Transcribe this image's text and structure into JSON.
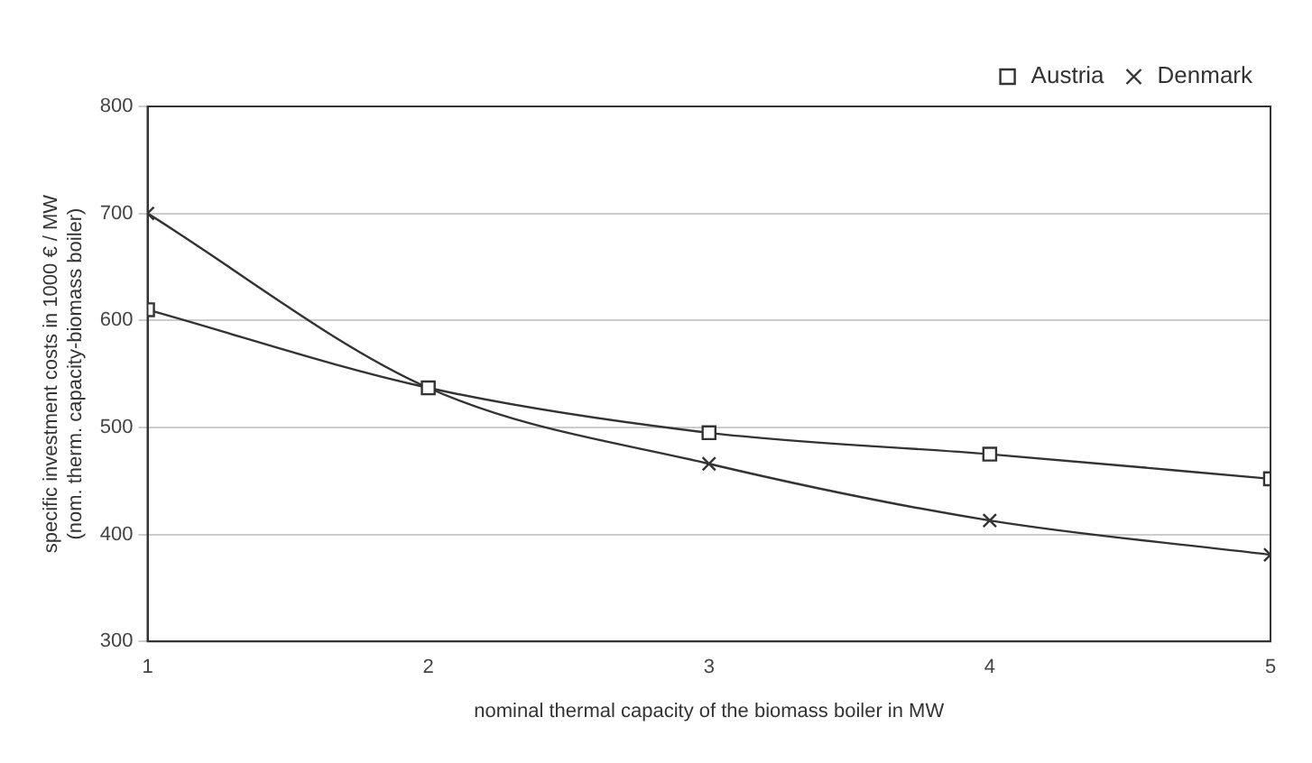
{
  "chart_data": {
    "type": "line",
    "xlabel": "nominal thermal capacity of the biomass boiler in MW",
    "ylabel": "specific investment costs in 1000 € / MW\n(nom. therm. capacity-biomass boiler)",
    "x": [
      1,
      2,
      3,
      4,
      5
    ],
    "series": [
      {
        "name": "Austria",
        "color": "#333333",
        "marker": "square",
        "values": [
          610,
          537,
          495,
          475,
          452
        ]
      },
      {
        "name": "Denmark",
        "color": "#333333",
        "marker": "cross",
        "values": [
          700,
          537,
          466,
          413,
          381
        ]
      }
    ],
    "xlim": [
      1,
      5
    ],
    "xticks": [
      1,
      2,
      3,
      4,
      5
    ],
    "ylim": [
      300,
      800
    ],
    "yticks": [
      300,
      400,
      500,
      600,
      700,
      800
    ],
    "grid": "y",
    "legend": "top right",
    "line_style": "solid"
  }
}
